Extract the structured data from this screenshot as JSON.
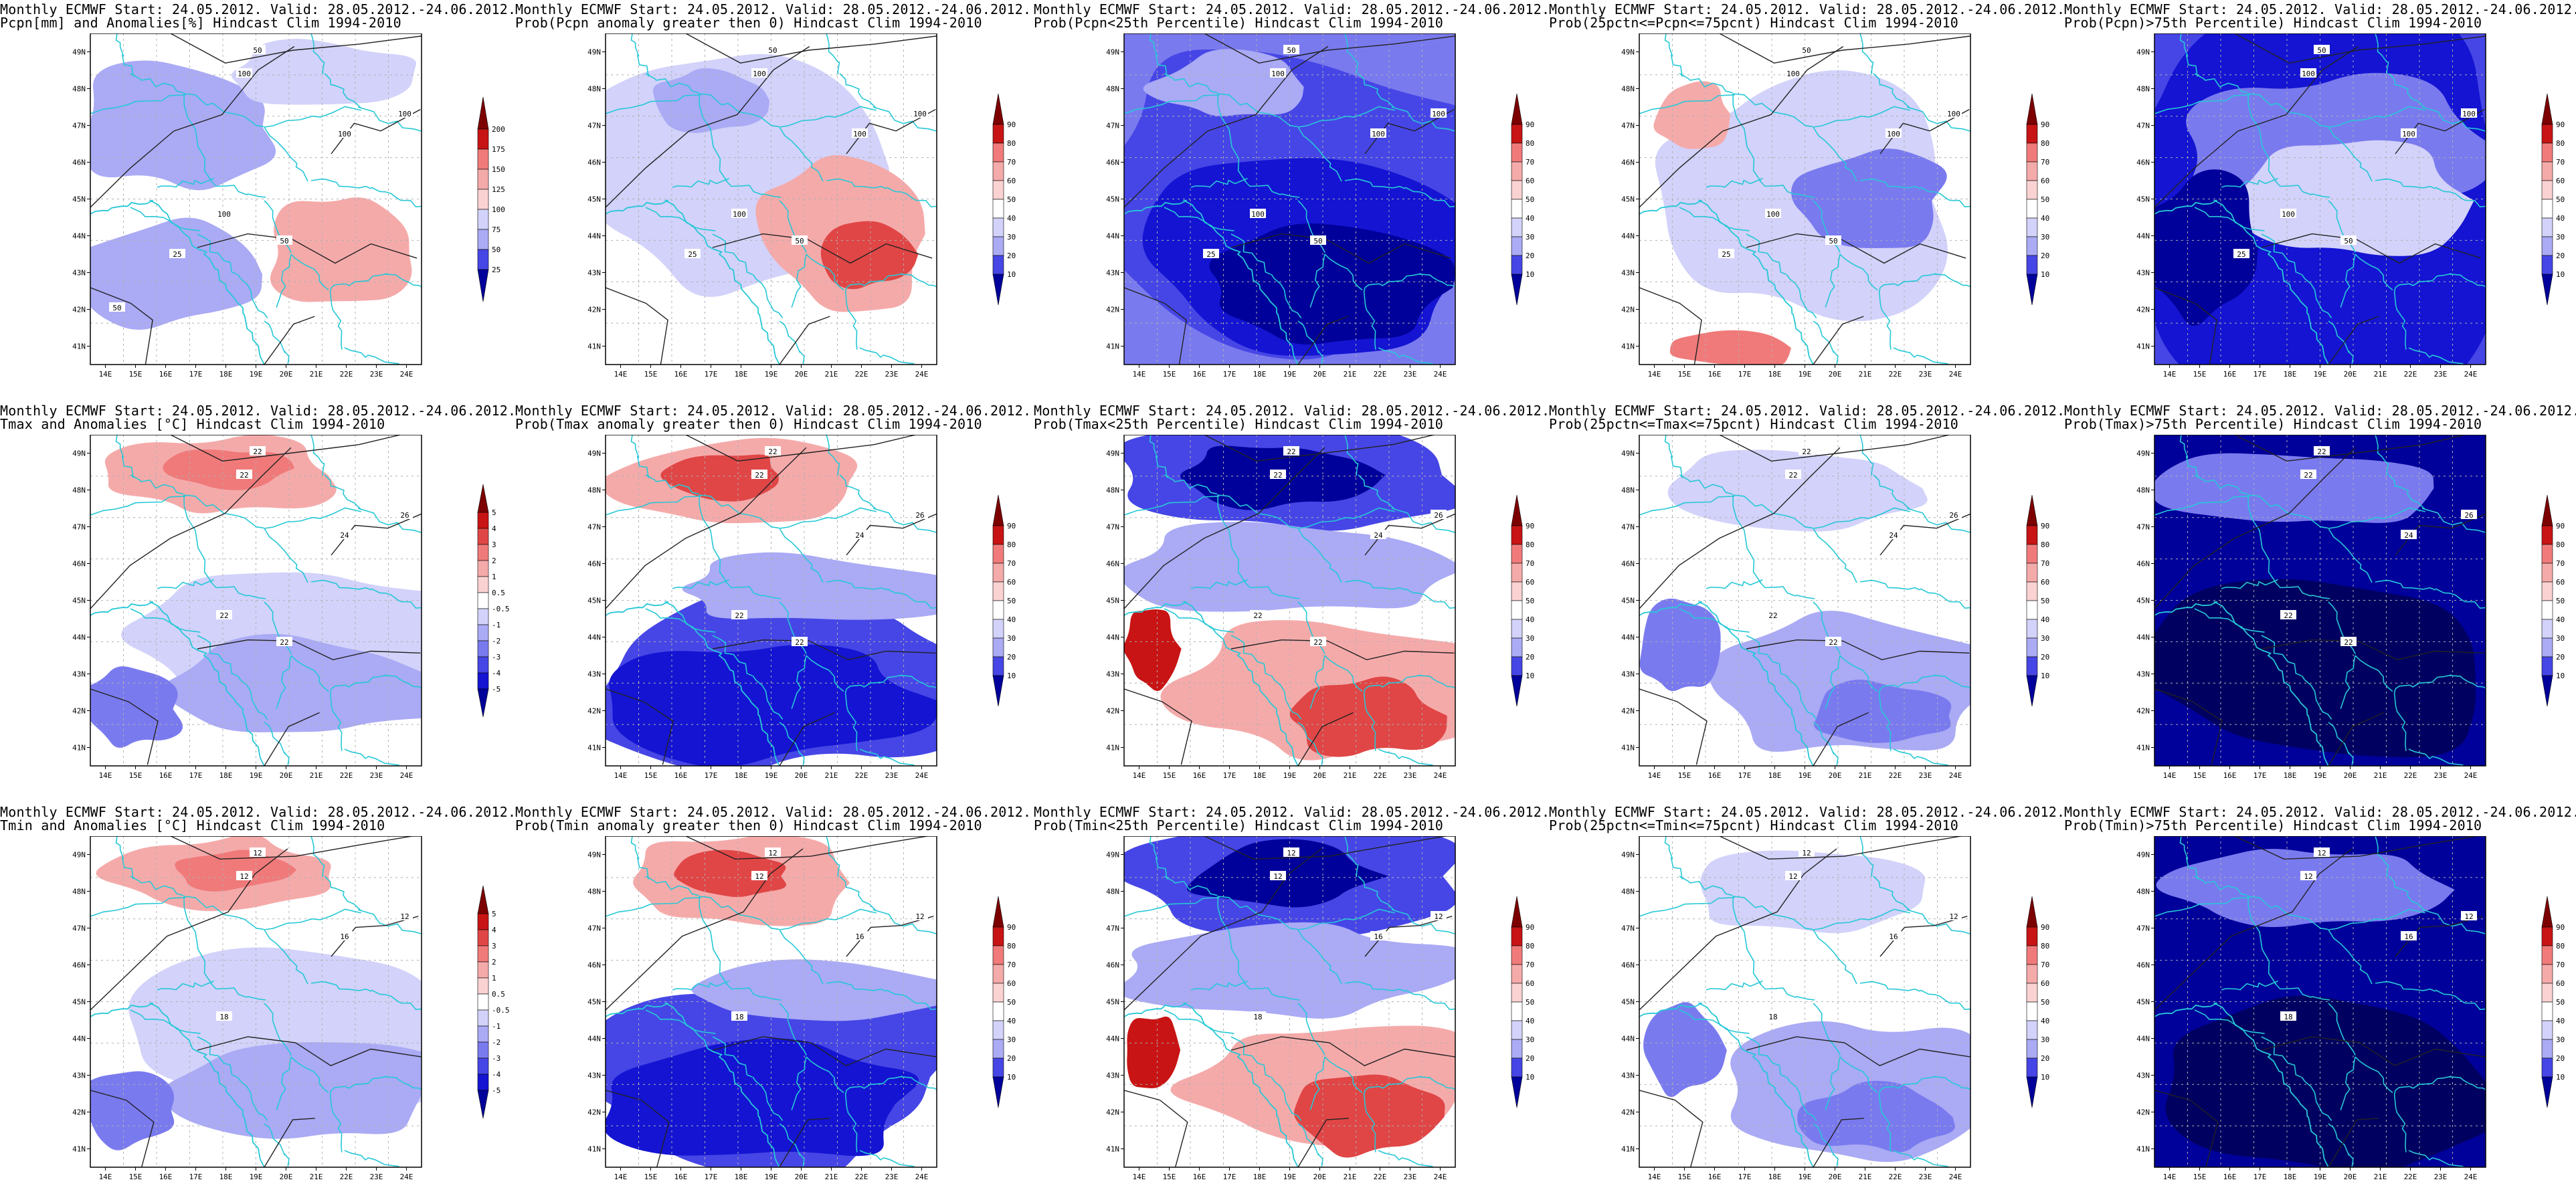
{
  "header_prefix": "Monthly ECMWF Start: 24.05.2012. Valid: 28.05.2012.-24.06.2012.",
  "lon_ticks": [
    "14E",
    "15E",
    "16E",
    "17E",
    "18E",
    "19E",
    "20E",
    "21E",
    "22E",
    "23E",
    "24E"
  ],
  "lat_ticks": [
    "49N",
    "48N",
    "47N",
    "46N",
    "45N",
    "44N",
    "43N",
    "42N",
    "41N"
  ],
  "colorbars": {
    "pcpn": [
      "200",
      "175",
      "150",
      "125",
      "100",
      "75",
      "50",
      "25"
    ],
    "temp": [
      "5",
      "4",
      "3",
      "2",
      "1",
      "0.5",
      "-0.5",
      "-1",
      "-2",
      "-3",
      "-4",
      "-5"
    ],
    "prob": [
      "90",
      "80",
      "70",
      "60",
      "50",
      "40",
      "30",
      "20",
      "10"
    ]
  },
  "colors": {
    "contour": "#222222",
    "border": "#26c8d6",
    "grid": "#b0b0b0",
    "red_scale": [
      "#7d0000",
      "#c81414",
      "#e04646",
      "#f07a7a",
      "#f5aaaa",
      "#fad2d2"
    ],
    "blue_scale": [
      "#d2d2fa",
      "#aaaaf5",
      "#7a7aef",
      "#4646e6",
      "#1414d2",
      "#00009a",
      "#000060"
    ]
  },
  "rows": [
    {
      "var": "Pcpn",
      "panels": [
        {
          "title2": "Pcpn[mm] and Anomalies[%] Hindcast Clim 1994-2010",
          "kind": "anom",
          "bar": "pcpn",
          "contours": [
            "50",
            "100",
            "100",
            "100",
            "100",
            "50",
            "25",
            "50"
          ]
        },
        {
          "title2": "Prob(Pcpn anomaly greater then 0) Hindcast Clim 1994-2010",
          "kind": "probpos",
          "bar": "prob",
          "contours": [
            "50",
            "100",
            "100",
            "100",
            "100",
            "50",
            "25"
          ]
        },
        {
          "title2": "Prob(Pcpn<25th Percentile) Hindcast Clim 1994-2010",
          "kind": "problow",
          "bar": "prob",
          "contours": [
            "50",
            "100",
            "100",
            "100",
            "100",
            "50",
            "25"
          ]
        },
        {
          "title2": "Prob(25pctn<=Pcpn<=75pcnt) Hindcast Clim 1994-2010",
          "kind": "probmid",
          "bar": "prob",
          "contours": [
            "50",
            "100",
            "100",
            "100",
            "100",
            "50",
            "25"
          ]
        },
        {
          "title2": "Prob(Pcpn)>75th Percentile) Hindcast Clim 1994-2010",
          "kind": "probhigh",
          "bar": "prob",
          "contours": [
            "50",
            "100",
            "100",
            "100",
            "100",
            "50",
            "25"
          ]
        }
      ]
    },
    {
      "var": "Tmax",
      "panels": [
        {
          "title2": "Tmax and Anomalies [°C] Hindcast Clim 1994-2010",
          "kind": "anom",
          "bar": "temp",
          "contours": [
            "22",
            "22",
            "26",
            "24",
            "22",
            "22"
          ]
        },
        {
          "title2": "Prob(Tmax anomaly greater then 0) Hindcast Clim 1994-2010",
          "kind": "probpos",
          "bar": "prob",
          "contours": [
            "22",
            "22",
            "26",
            "24",
            "22",
            "22"
          ]
        },
        {
          "title2": "Prob(Tmax<25th Percentile) Hindcast Clim 1994-2010",
          "kind": "problow",
          "bar": "prob",
          "contours": [
            "22",
            "22",
            "26",
            "24",
            "22",
            "22"
          ]
        },
        {
          "title2": "Prob(25pctn<=Tmax<=75pcnt) Hindcast Clim 1994-2010",
          "kind": "probmid",
          "bar": "prob",
          "contours": [
            "22",
            "22",
            "26",
            "24",
            "22",
            "22"
          ]
        },
        {
          "title2": "Prob(Tmax)>75th Percentile) Hindcast Clim 1994-2010",
          "kind": "probhigh",
          "bar": "prob",
          "contours": [
            "22",
            "22",
            "26",
            "24",
            "22",
            "22"
          ]
        }
      ]
    },
    {
      "var": "Tmin",
      "panels": [
        {
          "title2": "Tmin and Anomalies [°C] Hindcast Clim 1994-2010",
          "kind": "anom",
          "bar": "temp",
          "contours": [
            "12",
            "12",
            "12",
            "16",
            "18"
          ]
        },
        {
          "title2": "Prob(Tmin anomaly greater then 0) Hindcast Clim 1994-2010",
          "kind": "probpos",
          "bar": "prob",
          "contours": [
            "12",
            "12",
            "12",
            "16",
            "18"
          ]
        },
        {
          "title2": "Prob(Tmin<25th Percentile) Hindcast Clim 1994-2010",
          "kind": "problow",
          "bar": "prob",
          "contours": [
            "12",
            "12",
            "12",
            "16",
            "18"
          ]
        },
        {
          "title2": "Prob(25pctn<=Tmin<=75pcnt) Hindcast Clim 1994-2010",
          "kind": "probmid",
          "bar": "prob",
          "contours": [
            "12",
            "12",
            "12",
            "16",
            "18"
          ]
        },
        {
          "title2": "Prob(Tmin)>75th Percentile) Hindcast Clim 1994-2010",
          "kind": "probhigh",
          "bar": "prob",
          "contours": [
            "12",
            "12",
            "12",
            "16",
            "18"
          ]
        }
      ]
    }
  ]
}
